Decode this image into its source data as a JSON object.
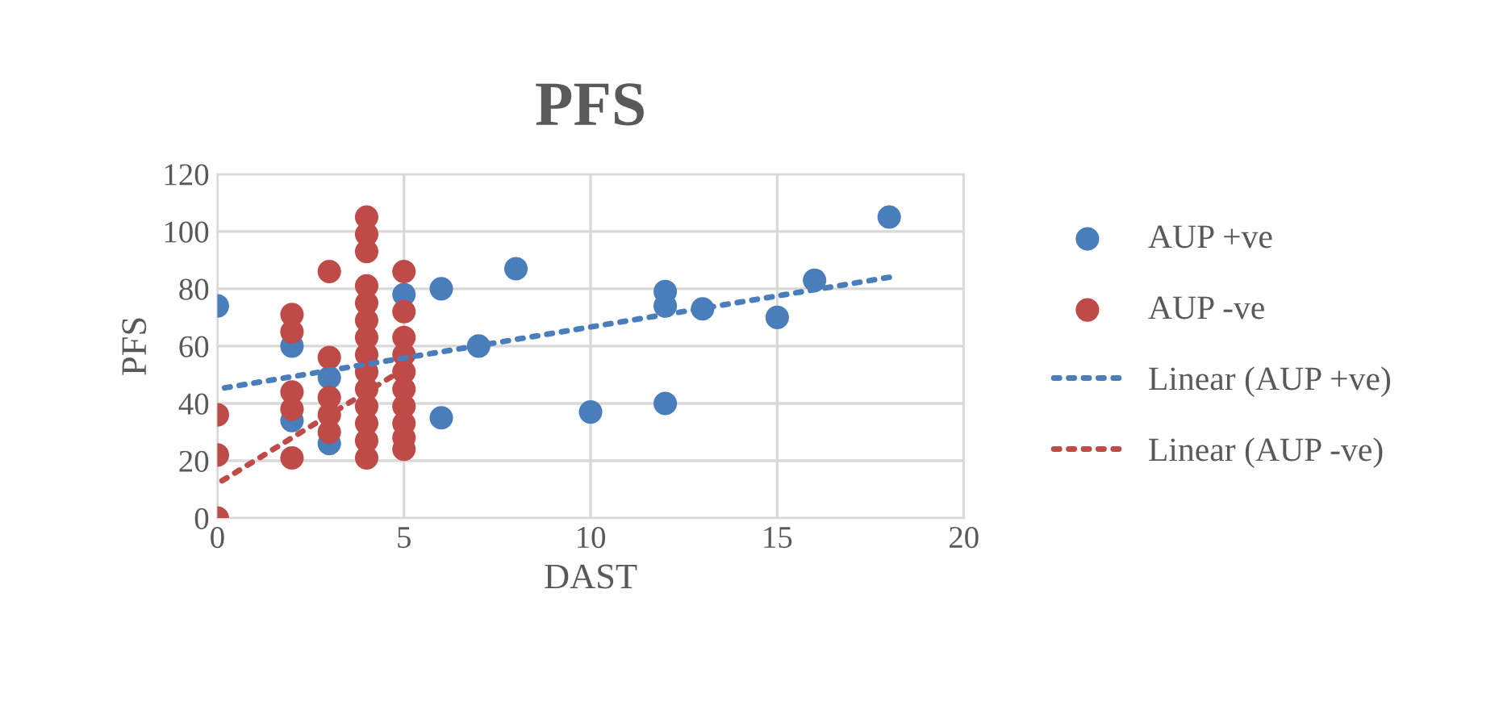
{
  "chart_data": {
    "type": "scatter",
    "title": "PFS",
    "xlabel": "DAST",
    "ylabel": "PFS",
    "xlim": [
      0,
      20
    ],
    "xticks": [
      0,
      5,
      10,
      15,
      20
    ],
    "ylim": [
      0,
      120
    ],
    "yticks": [
      0,
      20,
      40,
      60,
      80,
      100,
      120
    ],
    "grid": true,
    "legend": "right",
    "series": [
      {
        "name": "AUP +ve",
        "color": "#4a7ebb",
        "marker": "circle",
        "x": [
          0,
          2,
          2,
          3,
          3,
          5,
          6,
          6,
          7,
          8,
          10,
          12,
          12,
          12,
          13,
          15,
          16,
          18
        ],
        "values": [
          74,
          60,
          34,
          49,
          26,
          78,
          80,
          35,
          60,
          87,
          37,
          79,
          74,
          40,
          73,
          70,
          83,
          105
        ]
      },
      {
        "name": "AUP -ve",
        "color": "#be4b48",
        "marker": "circle",
        "x": [
          0,
          0,
          0,
          2,
          2,
          2,
          2,
          2,
          3,
          3,
          3,
          3,
          3,
          4,
          4,
          4,
          4,
          4,
          4,
          4,
          4,
          4,
          4,
          4,
          4,
          4,
          4,
          5,
          5,
          5,
          5,
          5,
          5,
          5,
          5,
          5,
          5
        ],
        "values": [
          36,
          22,
          0,
          71,
          65,
          44,
          38,
          21,
          86,
          56,
          42,
          36,
          30,
          21,
          27,
          33,
          39,
          45,
          51,
          57,
          63,
          69,
          75,
          81,
          93,
          99,
          105,
          86,
          72,
          63,
          57,
          51,
          45,
          39,
          33,
          28,
          24
        ]
      },
      {
        "name": "Linear (AUP +ve)",
        "type": "line",
        "marker": "none",
        "line_style": "dotted",
        "color": "#4a7ebb",
        "x": [
          0,
          18
        ],
        "values": [
          45,
          84
        ]
      },
      {
        "name": "Linear (AUP -ve)",
        "type": "line",
        "marker": "none",
        "line_style": "dotted",
        "color": "#be4b48",
        "x": [
          0,
          5
        ],
        "values": [
          12,
          52
        ]
      }
    ]
  }
}
